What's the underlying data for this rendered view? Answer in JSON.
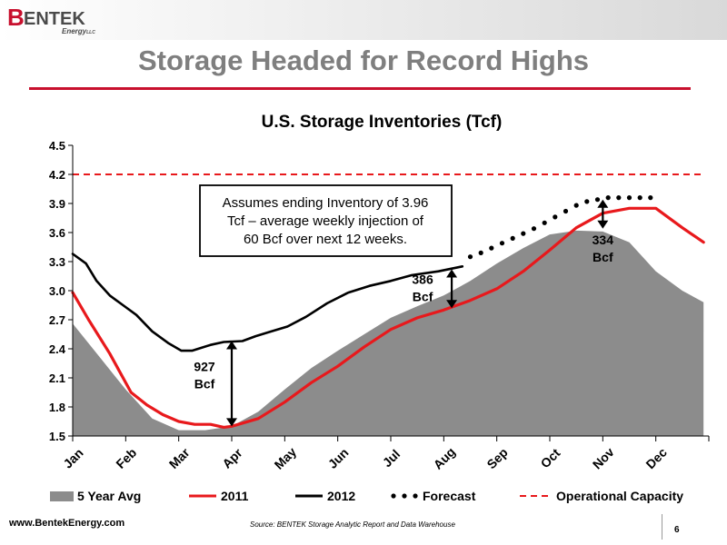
{
  "header": {
    "logo_text": "BENTEK Energy LLC",
    "logo_b": "B",
    "logo_rest": "ENTEK",
    "logo_sub": "Energy",
    "logo_sub_suffix": "LLC",
    "title": "Storage Headed for Record Highs",
    "accent_color": "#c8102e"
  },
  "footer": {
    "url": "www.BentekEnergy.com",
    "source": "Source: BENTEK Storage Analytic Report and Data Warehouse",
    "page_number": "6"
  },
  "chart_data": {
    "type": "line",
    "title": "U.S. Storage Inventories (Tcf)",
    "xlabel": "",
    "ylabel": "",
    "ylim": [
      1.5,
      4.5
    ],
    "xlim": [
      0,
      11.9
    ],
    "yticks": [
      1.5,
      1.8,
      2.1,
      2.4,
      2.7,
      3.0,
      3.3,
      3.6,
      3.9,
      4.2,
      4.5
    ],
    "yticklabels": [
      "1.5",
      "1.8",
      "2.1",
      "2.4",
      "2.7",
      "3.0",
      "3.3",
      "3.6",
      "3.9",
      "4.2",
      "4.5"
    ],
    "categories": [
      "Jan",
      "Feb",
      "Mar",
      "Apr",
      "May",
      "Jun",
      "Jul",
      "Aug",
      "Sep",
      "Oct",
      "Nov",
      "Dec"
    ],
    "grid": false,
    "legend_position": "bottom",
    "series": [
      {
        "name": "5 Year Avg",
        "kind": "area",
        "color": "#8c8c8c",
        "x": [
          0,
          0.5,
          1,
          1.5,
          2,
          2.5,
          3,
          3.5,
          4,
          4.5,
          5,
          5.5,
          6,
          6.5,
          7,
          7.5,
          8,
          8.5,
          9,
          9.5,
          10,
          10.5,
          11,
          11.5,
          11.9
        ],
        "y": [
          2.66,
          2.32,
          1.98,
          1.68,
          1.56,
          1.56,
          1.6,
          1.75,
          1.98,
          2.2,
          2.38,
          2.55,
          2.72,
          2.84,
          2.95,
          3.1,
          3.28,
          3.44,
          3.58,
          3.62,
          3.61,
          3.5,
          3.2,
          3.0,
          2.88
        ]
      },
      {
        "name": "2011",
        "kind": "line",
        "color": "#e8191c",
        "x": [
          0,
          0.3,
          0.7,
          1.1,
          1.4,
          1.7,
          2,
          2.3,
          2.6,
          2.85,
          3,
          3.5,
          4,
          4.5,
          5,
          5.5,
          6,
          6.5,
          7,
          7.5,
          8,
          8.5,
          9,
          9.5,
          10,
          10.5,
          11,
          11.5,
          11.9
        ],
        "y": [
          2.98,
          2.7,
          2.35,
          1.95,
          1.82,
          1.72,
          1.65,
          1.62,
          1.62,
          1.59,
          1.6,
          1.68,
          1.85,
          2.05,
          2.22,
          2.42,
          2.6,
          2.72,
          2.8,
          2.9,
          3.02,
          3.2,
          3.42,
          3.65,
          3.8,
          3.85,
          3.85,
          3.65,
          3.5
        ]
      },
      {
        "name": "2012",
        "kind": "line",
        "color": "#000000",
        "x": [
          0,
          0.25,
          0.45,
          0.7,
          0.95,
          1.2,
          1.5,
          1.8,
          2.05,
          2.25,
          2.6,
          2.85,
          3.2,
          3.45,
          3.75,
          4.05,
          4.4,
          4.8,
          5.2,
          5.6,
          6,
          6.4,
          6.9,
          7.35
        ],
        "y": [
          3.38,
          3.28,
          3.1,
          2.95,
          2.85,
          2.75,
          2.58,
          2.46,
          2.38,
          2.38,
          2.44,
          2.47,
          2.48,
          2.53,
          2.58,
          2.63,
          2.73,
          2.87,
          2.98,
          3.05,
          3.1,
          3.16,
          3.2,
          3.25
        ]
      },
      {
        "name": "Forecast",
        "kind": "dots",
        "color": "#000000",
        "x": [
          7.5,
          7.7,
          7.9,
          8.1,
          8.3,
          8.5,
          8.7,
          8.9,
          9.1,
          9.3,
          9.5,
          9.7,
          9.9,
          10.1,
          10.3,
          10.5,
          10.7,
          10.9
        ],
        "y": [
          3.35,
          3.39,
          3.44,
          3.49,
          3.54,
          3.59,
          3.64,
          3.7,
          3.76,
          3.82,
          3.88,
          3.92,
          3.94,
          3.96,
          3.96,
          3.96,
          3.96,
          3.96
        ]
      },
      {
        "name": "Operational Capacity",
        "kind": "dashed",
        "color": "#e8191c",
        "x": [
          0,
          11.9
        ],
        "y": [
          4.2,
          4.2
        ]
      }
    ],
    "annotations": [
      {
        "text": "Assumes ending Inventory of 3.96 Tcf – average weekly injection of 60 Bcf over next 12 weeks."
      },
      {
        "value": "927",
        "unit": "Bcf"
      },
      {
        "value": "386",
        "unit": "Bcf"
      },
      {
        "value": "334",
        "unit": "Bcf"
      }
    ]
  }
}
